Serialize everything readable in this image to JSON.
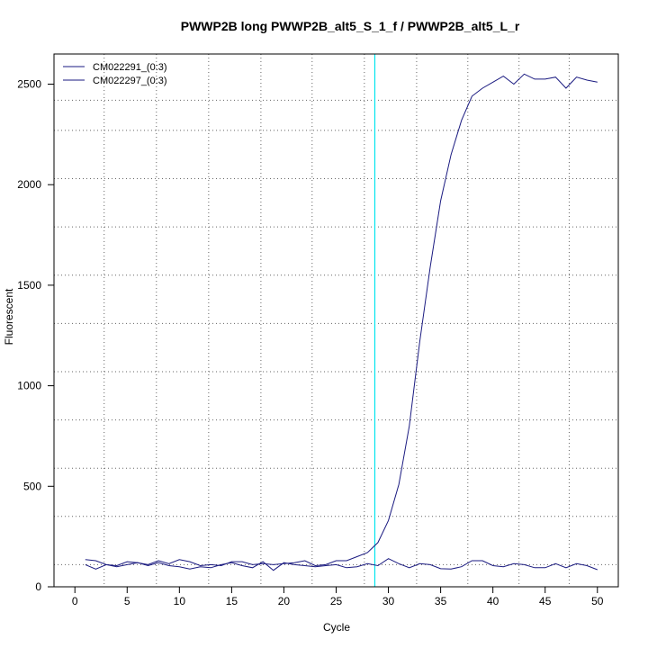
{
  "chart_data": {
    "type": "line",
    "title": "PWWP2B long PWWP2B_alt5_S_1_f / PWWP2B_alt5_L_r",
    "xlabel": "Cycle",
    "ylabel": "Fluorescent",
    "xlim": [
      -2,
      52
    ],
    "ylim": [
      0,
      2650
    ],
    "x_ticks": [
      0,
      5,
      10,
      15,
      20,
      25,
      30,
      35,
      40,
      45,
      50
    ],
    "y_ticks": [
      0,
      500,
      1000,
      1500,
      2000,
      2500
    ],
    "x_grid": [
      2.8,
      7.8,
      12.8,
      17.8,
      22.7,
      27.7,
      32.7,
      37.6,
      42.5,
      47.3
    ],
    "y_grid": [
      110,
      350,
      590,
      830,
      1070,
      1310,
      1550,
      1790,
      2030,
      2270,
      2420
    ],
    "threshold_cycle": 28.7,
    "threshold_color": "#00e5ee",
    "series_color": "#1a1a80",
    "legend_position": "top-left",
    "x": [
      1,
      2,
      3,
      4,
      5,
      6,
      7,
      8,
      9,
      10,
      11,
      12,
      13,
      14,
      15,
      16,
      17,
      18,
      19,
      20,
      21,
      22,
      23,
      24,
      25,
      26,
      27,
      28,
      29,
      30,
      31,
      32,
      33,
      34,
      35,
      36,
      37,
      38,
      39,
      40,
      41,
      42,
      43,
      44,
      45,
      46,
      47,
      48,
      49,
      50
    ],
    "series": [
      {
        "name": "CM022291_(0:3)",
        "values": [
          110,
          88,
          110,
          100,
          110,
          120,
          105,
          120,
          105,
          100,
          88,
          100,
          95,
          110,
          120,
          105,
          95,
          125,
          82,
          120,
          110,
          105,
          100,
          105,
          110,
          95,
          100,
          115,
          105,
          140,
          115,
          95,
          115,
          110,
          90,
          88,
          100,
          130,
          130,
          105,
          100,
          115,
          110,
          95,
          95,
          115,
          95,
          115,
          105,
          85
        ]
      },
      {
        "name": "CM022297_(0:3)",
        "values": [
          135,
          130,
          110,
          105,
          125,
          120,
          110,
          130,
          115,
          135,
          125,
          105,
          110,
          105,
          125,
          125,
          110,
          115,
          110,
          115,
          120,
          130,
          105,
          110,
          130,
          130,
          150,
          170,
          220,
          330,
          510,
          800,
          1220,
          1590,
          1920,
          2150,
          2320,
          2440,
          2480,
          2510,
          2540,
          2500,
          2550,
          2525,
          2525,
          2535,
          2480,
          2535,
          2520,
          2510
        ]
      }
    ]
  }
}
